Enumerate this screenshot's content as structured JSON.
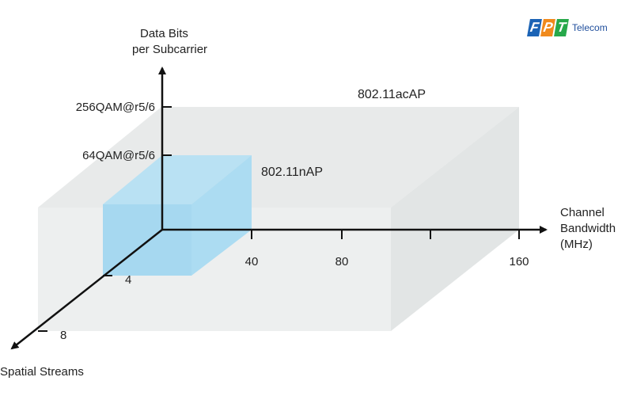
{
  "logo": {
    "letters": [
      "F",
      "P",
      "T"
    ],
    "letter_colors": [
      "#1b63b5",
      "#f08a1c",
      "#27a84a"
    ],
    "suffix": "Telecom"
  },
  "axes": {
    "y_label_line1": "Data Bits",
    "y_label_line2": "per Subcarrier",
    "x_label_line1": "Channel",
    "x_label_line2": "Bandwidth",
    "x_label_line3": "(MHz)",
    "z_label": "Spatial Streams"
  },
  "y_ticks": [
    "256QAM@r5/6",
    "64QAM@r5/6"
  ],
  "x_ticks": [
    "40",
    "80",
    "160"
  ],
  "z_ticks": [
    "4",
    "8"
  ],
  "volumes": {
    "ac": {
      "label": "802.11acAP",
      "color": "#d9dcdc"
    },
    "n": {
      "label": "802.11nAP",
      "color": "#9fd6f0"
    }
  }
}
